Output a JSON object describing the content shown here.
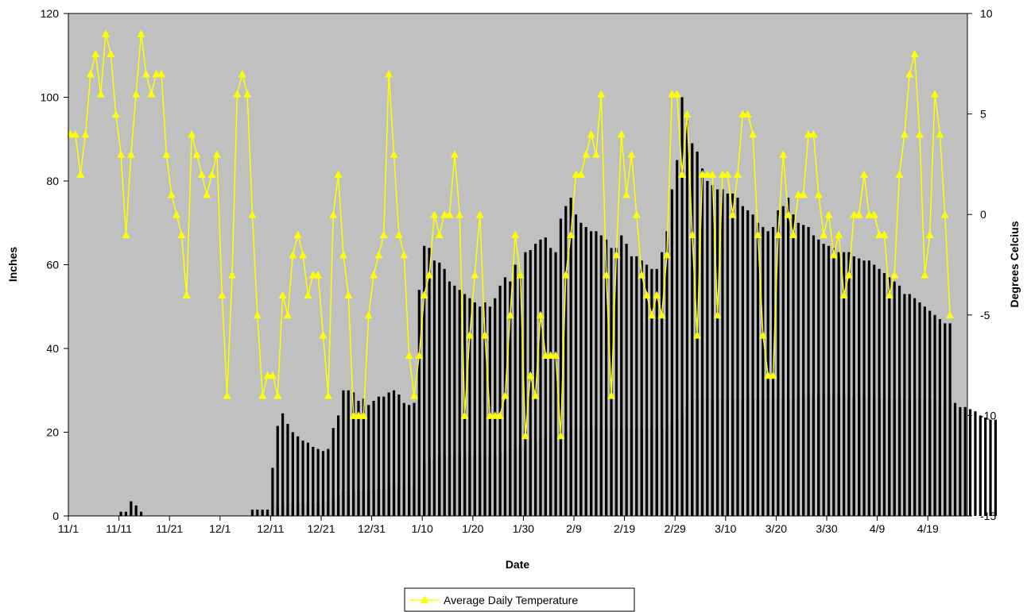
{
  "chart_data": {
    "type": "bar",
    "xlabel": "Date",
    "ylabel": "Inches",
    "y2label": "Degrees Celcius",
    "ylim": [
      0,
      120
    ],
    "y2lim": [
      -15,
      10
    ],
    "yticks": [
      0,
      20,
      40,
      60,
      80,
      100,
      120
    ],
    "y2ticks": [
      -15,
      -10,
      -5,
      0,
      5,
      10
    ],
    "xticks": [
      "11/1",
      "11/11",
      "11/21",
      "12/1",
      "12/11",
      "12/21",
      "12/31",
      "1/10",
      "1/20",
      "1/30",
      "2/9",
      "2/19",
      "2/29",
      "3/10",
      "3/20",
      "3/30",
      "4/9",
      "4/19"
    ],
    "x_start_date": "11/1",
    "plot_background": "#c0c0c0",
    "bar_color": "#000000",
    "line_color": "#ffff00",
    "legend_position": "bottom-center",
    "series": [
      {
        "kind": "bar",
        "values": [
          0,
          0,
          0,
          0,
          0,
          0,
          0,
          0,
          0,
          0,
          1,
          1,
          3.5,
          2.5,
          1,
          0,
          0,
          0,
          0,
          0,
          0,
          0,
          0,
          0,
          0,
          0,
          0,
          0,
          0,
          0,
          0,
          0,
          0,
          0,
          0,
          0,
          1.5,
          1.5,
          1.5,
          1.5,
          11.5,
          21.5,
          24.5,
          22,
          20,
          19,
          18,
          17.5,
          16.5,
          16,
          15.5,
          16,
          21,
          24,
          30,
          30,
          29.5,
          27.5,
          28,
          26.5,
          27.5,
          28.5,
          28.5,
          29.5,
          30,
          29,
          27,
          26.5,
          27,
          54,
          64.5,
          64,
          61,
          60.5,
          59,
          56,
          55,
          54,
          53,
          52,
          51,
          50,
          51,
          50,
          52,
          55,
          57,
          56,
          60,
          58,
          63,
          63.5,
          65,
          66,
          66.5,
          64,
          63,
          71,
          74,
          76,
          72,
          70,
          69,
          68,
          68,
          67,
          66,
          64,
          64,
          67,
          65,
          62,
          62,
          61,
          60,
          59,
          59,
          63,
          68,
          78,
          85,
          100,
          94.5,
          89,
          87,
          83,
          80,
          79,
          78,
          78,
          77,
          77,
          76,
          74,
          73,
          72,
          70,
          69,
          68,
          69,
          73,
          74,
          76,
          72,
          70,
          69.5,
          69,
          67,
          66,
          65,
          64.5,
          64,
          63,
          63,
          63,
          62,
          61.5,
          61,
          61,
          60,
          59,
          58,
          57,
          56,
          55,
          53,
          53,
          52,
          51,
          50,
          49,
          48,
          47,
          46,
          46
        ]
      },
      {
        "kind": "bar",
        "values": [
          0,
          0,
          0,
          0,
          0,
          0,
          0,
          0,
          0,
          0,
          0,
          0,
          0,
          0,
          0,
          0,
          0,
          0,
          0,
          0,
          0,
          0,
          0,
          0,
          0,
          0,
          0,
          0,
          0,
          0,
          0,
          0,
          0,
          0,
          0,
          0,
          0,
          0,
          0,
          0,
          0,
          2.5,
          3,
          3,
          3,
          3,
          3,
          3,
          3,
          3,
          3,
          3.5,
          4,
          5,
          6,
          6,
          6,
          6,
          6,
          6,
          6,
          6.5,
          6.5,
          7,
          7,
          7,
          7,
          7,
          7,
          11,
          13,
          13.5,
          13.5,
          14.5,
          14.5,
          14.5,
          14.5,
          14.5,
          14.5,
          14.5,
          14.5,
          14.5,
          14.5,
          14.5,
          14.5,
          15,
          15,
          16,
          16,
          16.5,
          17,
          18,
          18,
          18.5,
          19,
          19,
          20,
          20,
          20,
          21,
          21,
          21,
          21,
          21,
          21,
          21,
          21,
          21,
          21,
          21,
          21,
          21,
          21,
          21,
          21,
          21,
          21,
          21,
          21,
          22,
          23,
          24,
          26,
          28,
          28,
          28,
          28,
          28,
          28,
          28,
          28,
          28,
          28,
          28,
          28,
          28,
          28,
          28,
          28,
          28,
          28,
          28,
          28,
          28,
          28.5,
          29,
          29,
          29,
          29,
          29,
          29,
          29,
          29,
          29,
          28.5,
          28.5,
          28.5,
          28.5,
          28,
          28,
          28,
          28,
          28,
          28,
          28,
          28,
          28,
          28,
          28,
          28,
          28,
          28,
          27.5,
          27.5,
          27.5,
          27,
          26,
          26,
          25.5,
          25,
          24,
          23.5,
          23,
          23
        ]
      },
      {
        "name": "Average Daily Temperature",
        "kind": "line",
        "axis": "right",
        "values": [
          4,
          4,
          2,
          4,
          7,
          8,
          6,
          9,
          8,
          5,
          3,
          -1,
          3,
          6,
          9,
          7,
          6,
          7,
          7,
          3,
          1,
          0,
          -1,
          -4,
          4,
          3,
          2,
          1,
          2,
          3,
          -4,
          -9,
          -3,
          6,
          7,
          6,
          0,
          -5,
          -9,
          -8,
          -8,
          -9,
          -4,
          -5,
          -2,
          -1,
          -2,
          -4,
          -3,
          -3,
          -6,
          -9,
          0,
          2,
          -2,
          -4,
          -10,
          -10,
          -10,
          -5,
          -3,
          -2,
          -1,
          7,
          3,
          -1,
          -2,
          -7,
          -9,
          -7,
          -4,
          -3,
          0,
          -1,
          0,
          0,
          3,
          0,
          -10,
          -6,
          -3,
          0,
          -6,
          -10,
          -10,
          -10,
          -9,
          -5,
          -1,
          -3,
          -11,
          -8,
          -9,
          -5,
          -7,
          -7,
          -7,
          -11,
          -3,
          -1,
          2,
          2,
          3,
          4,
          3,
          6,
          -3,
          -9,
          -2,
          4,
          1,
          3,
          0,
          -3,
          -4,
          -5,
          -4,
          -5,
          -2,
          6,
          6,
          2,
          5,
          -1,
          -6,
          2,
          2,
          2,
          -5,
          2,
          2,
          0,
          2,
          5,
          5,
          4,
          -1,
          -6,
          -8,
          -8,
          -1,
          3,
          0,
          -1,
          1,
          1,
          4,
          4,
          1,
          -1,
          0,
          -2,
          -1,
          -4,
          -3,
          0,
          0,
          2,
          0,
          0,
          -1,
          -1,
          -4,
          -3,
          2,
          4,
          7,
          8,
          4,
          -3,
          -1,
          6,
          4,
          0,
          -5
        ]
      }
    ]
  }
}
